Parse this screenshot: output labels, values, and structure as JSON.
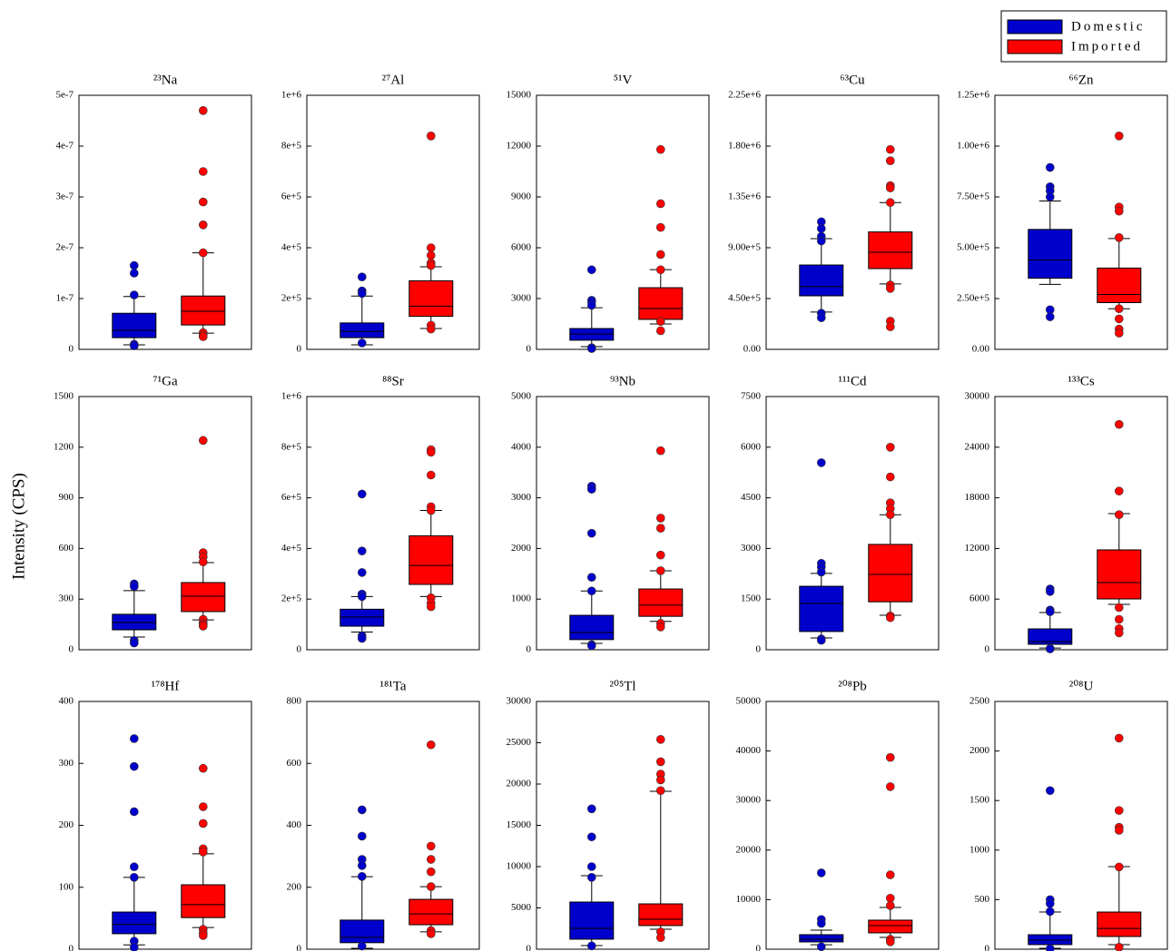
{
  "ylabel": "Intensity (CPS)",
  "chart_data": [
    {
      "type": "box",
      "title": "²³Na",
      "ylim": [
        0,
        5e-07
      ],
      "yticks": [
        0,
        {
          "value": 1e-07,
          "label": "1e-7"
        },
        {
          "value": 2e-07,
          "label": "2e-7"
        },
        {
          "value": 3e-07,
          "label": "3e-7"
        },
        {
          "value": 4e-07,
          "label": "4e-7"
        },
        {
          "value": 5e-07,
          "label": "5e-7"
        }
      ],
      "series": [
        {
          "name": "Domestic",
          "color": "#0000cc",
          "whislo": 9e-09,
          "q1": 2.3e-08,
          "med": 3.75e-08,
          "q3": 7.1e-08,
          "whishi": 1.04e-07,
          "fliers": [
            1.65e-07,
            1.5e-07,
            1.07e-07,
            1e-08,
            7e-09
          ]
        },
        {
          "name": "Imported",
          "color": "#ff0000",
          "whislo": 3.2e-08,
          "q1": 4.8e-08,
          "med": 7.5e-08,
          "q3": 1.05e-07,
          "whishi": 1.9e-07,
          "fliers": [
            4.7e-07,
            3.5e-07,
            2.9e-07,
            2.45e-07,
            1.9e-07,
            3.3e-08,
            2.8e-08,
            2.5e-08
          ]
        }
      ]
    },
    {
      "type": "box",
      "title": "²⁷Al",
      "ylim": [
        0,
        1000000
      ],
      "yticks": [
        0,
        {
          "value": 200000,
          "label": "2e+5"
        },
        {
          "value": 400000,
          "label": "4e+5"
        },
        {
          "value": 600000,
          "label": "6e+5"
        },
        {
          "value": 800000,
          "label": "8e+5"
        },
        {
          "value": 1000000,
          "label": "1e+6"
        }
      ],
      "series": [
        {
          "name": "Domestic",
          "color": "#0000cc",
          "whislo": 18000,
          "q1": 46000,
          "med": 71000,
          "q3": 104000,
          "whishi": 210000,
          "fliers": [
            285000,
            230000,
            220000,
            25000
          ]
        },
        {
          "name": "Imported",
          "color": "#ff0000",
          "whislo": 82000,
          "q1": 130000,
          "med": 170000,
          "q3": 270000,
          "whishi": 325000,
          "fliers": [
            840000,
            400000,
            370000,
            340000,
            330000,
            95000,
            80000
          ]
        }
      ]
    },
    {
      "type": "box",
      "title": "⁵¹V",
      "ylim": [
        0,
        15000
      ],
      "yticks": [
        0,
        3000,
        6000,
        9000,
        12000,
        15000
      ],
      "series": [
        {
          "name": "Domestic",
          "color": "#0000cc",
          "whislo": 160,
          "q1": 540,
          "med": 910,
          "q3": 1230,
          "whishi": 2460,
          "fliers": [
            4700,
            2900,
            2800,
            2600,
            100,
            50
          ]
        },
        {
          "name": "Imported",
          "color": "#ff0000",
          "whislo": 1500,
          "q1": 1770,
          "med": 2410,
          "q3": 3640,
          "whishi": 4710,
          "fliers": [
            11800,
            8600,
            7200,
            5600,
            4700,
            1650,
            1100
          ]
        }
      ]
    },
    {
      "type": "box",
      "title": "⁶³Cu",
      "ylim": [
        0,
        2250000
      ],
      "yticks": [
        {
          "value": 0,
          "label": "0.00"
        },
        {
          "value": 450000,
          "label": "4.50e+5"
        },
        {
          "value": 900000,
          "label": "9.00e+5"
        },
        {
          "value": 1350000,
          "label": "1.35e+6"
        },
        {
          "value": 1800000,
          "label": "1.80e+6"
        },
        {
          "value": 2250000,
          "label": "2.25e+6"
        }
      ],
      "series": [
        {
          "name": "Domestic",
          "color": "#0000cc",
          "whislo": 330000,
          "q1": 474000,
          "med": 555000,
          "q3": 747000,
          "whishi": 980000,
          "fliers": [
            1130000,
            1070000,
            1000000,
            960000,
            320000,
            280000
          ]
        },
        {
          "name": "Imported",
          "color": "#ff0000",
          "whislo": 580000,
          "q1": 715000,
          "med": 860000,
          "q3": 1040000,
          "whishi": 1300000,
          "fliers": [
            1770000,
            1670000,
            1450000,
            1430000,
            1300000,
            570000,
            540000,
            250000,
            200000
          ]
        }
      ]
    },
    {
      "type": "box",
      "title": "⁶⁶Zn",
      "ylim": [
        0,
        1250000
      ],
      "yticks": [
        {
          "value": 0,
          "label": "0.00"
        },
        {
          "value": 250000,
          "label": "2.50e+5"
        },
        {
          "value": 500000,
          "label": "5.00e+5"
        },
        {
          "value": 750000,
          "label": "7.50e+5"
        },
        {
          "value": 1000000,
          "label": "1.00e+6"
        },
        {
          "value": 1250000,
          "label": "1.25e+6"
        }
      ],
      "series": [
        {
          "name": "Domestic",
          "color": "#0000cc",
          "whislo": 320000,
          "q1": 350000,
          "med": 440000,
          "q3": 590000,
          "whishi": 730000,
          "fliers": [
            895000,
            800000,
            780000,
            750000,
            195000,
            160000
          ]
        },
        {
          "name": "Imported",
          "color": "#ff0000",
          "whislo": 200000,
          "q1": 230000,
          "med": 270000,
          "q3": 400000,
          "whishi": 545000,
          "fliers": [
            1050000,
            700000,
            680000,
            550000,
            200000,
            150000,
            100000,
            80000
          ]
        }
      ]
    },
    {
      "type": "box",
      "title": "⁷¹Ga",
      "ylim": [
        0,
        1500
      ],
      "yticks": [
        0,
        300,
        600,
        900,
        1200,
        1500
      ],
      "series": [
        {
          "name": "Domestic",
          "color": "#0000cc",
          "whislo": 75,
          "q1": 118,
          "med": 161,
          "q3": 210,
          "whishi": 350,
          "fliers": [
            390,
            375,
            55,
            40
          ]
        },
        {
          "name": "Imported",
          "color": "#ff0000",
          "whislo": 177,
          "q1": 226,
          "med": 317,
          "q3": 398,
          "whishi": 516,
          "fliers": [
            1240,
            575,
            550,
            520,
            180,
            160,
            150,
            140
          ]
        }
      ]
    },
    {
      "type": "box",
      "title": "⁸⁸Sr",
      "ylim": [
        0,
        1000000
      ],
      "yticks": [
        0,
        {
          "value": 200000,
          "label": "2e+5"
        },
        {
          "value": 400000,
          "label": "4e+5"
        },
        {
          "value": 600000,
          "label": "6e+5"
        },
        {
          "value": 800000,
          "label": "8e+5"
        },
        {
          "value": 1000000,
          "label": "1e+6"
        }
      ],
      "series": [
        {
          "name": "Domestic",
          "color": "#0000cc",
          "whislo": 70000,
          "q1": 93000,
          "med": 129000,
          "q3": 160000,
          "whishi": 210000,
          "fliers": [
            615000,
            390000,
            305000,
            220000,
            210000,
            55000,
            45000
          ]
        },
        {
          "name": "Imported",
          "color": "#ff0000",
          "whislo": 210000,
          "q1": 258000,
          "med": 333000,
          "q3": 450000,
          "whishi": 550000,
          "fliers": [
            790000,
            780000,
            690000,
            565000,
            550000,
            205000,
            185000,
            170000
          ]
        }
      ]
    },
    {
      "type": "box",
      "title": "⁹³Nb",
      "ylim": [
        0,
        5000
      ],
      "yticks": [
        0,
        1000,
        2000,
        3000,
        4000,
        5000
      ],
      "series": [
        {
          "name": "Domestic",
          "color": "#0000cc",
          "whislo": 125,
          "q1": 200,
          "med": 340,
          "q3": 680,
          "whishi": 1160,
          "fliers": [
            3230,
            3170,
            2300,
            1430,
            1160,
            100,
            80
          ]
        },
        {
          "name": "Imported",
          "color": "#ff0000",
          "whislo": 560,
          "q1": 660,
          "med": 880,
          "q3": 1200,
          "whishi": 1560,
          "fliers": [
            3930,
            2600,
            2400,
            1870,
            1560,
            520,
            450
          ]
        }
      ]
    },
    {
      "type": "box",
      "title": "¹¹¹Cd",
      "ylim": [
        0,
        7500
      ],
      "yticks": [
        0,
        1500,
        3000,
        4500,
        6000,
        7500
      ],
      "series": [
        {
          "name": "Domestic",
          "color": "#0000cc",
          "whislo": 350,
          "q1": 540,
          "med": 1370,
          "q3": 1880,
          "whishi": 2260,
          "fliers": [
            5540,
            2560,
            2450,
            2300,
            320,
            280
          ]
        },
        {
          "name": "Imported",
          "color": "#ff0000",
          "whislo": 1020,
          "q1": 1420,
          "med": 2230,
          "q3": 3120,
          "whishi": 4000,
          "fliers": [
            6000,
            5120,
            4350,
            4180,
            4000,
            1000,
            950
          ]
        }
      ]
    },
    {
      "type": "box",
      "title": "¹³³Cs",
      "ylim": [
        0,
        30000
      ],
      "yticks": [
        0,
        6000,
        12000,
        18000,
        24000,
        30000
      ],
      "series": [
        {
          "name": "Domestic",
          "color": "#0000cc",
          "whislo": 200,
          "q1": 640,
          "med": 970,
          "q3": 2470,
          "whishi": 4410,
          "fliers": [
            7200,
            6900,
            4700,
            4500,
            150,
            100
          ]
        },
        {
          "name": "Imported",
          "color": "#ff0000",
          "whislo": 5380,
          "q1": 6020,
          "med": 7960,
          "q3": 11830,
          "whishi": 16130,
          "fliers": [
            26700,
            18800,
            16000,
            5000,
            3600,
            2500,
            2000
          ]
        }
      ]
    },
    {
      "type": "box",
      "title": "¹⁷⁸Hf",
      "ylim": [
        0,
        400
      ],
      "yticks": [
        0,
        100,
        200,
        300,
        400
      ],
      "series": [
        {
          "name": "Domestic",
          "color": "#0000cc",
          "whislo": 7,
          "q1": 25,
          "med": 40,
          "q3": 60,
          "whishi": 116,
          "fliers": [
            340,
            295,
            222,
            133,
            116,
            13,
            3
          ]
        },
        {
          "name": "Imported",
          "color": "#ff0000",
          "whislo": 35,
          "q1": 51,
          "med": 72,
          "q3": 104,
          "whishi": 154,
          "fliers": [
            292,
            230,
            203,
            162,
            157,
            32,
            26,
            22
          ]
        }
      ]
    },
    {
      "type": "box",
      "title": "¹⁸¹Ta",
      "ylim": [
        0,
        800
      ],
      "yticks": [
        0,
        200,
        400,
        600,
        800
      ],
      "series": [
        {
          "name": "Domestic",
          "color": "#0000cc",
          "whislo": 3,
          "q1": 21,
          "med": 38,
          "q3": 94,
          "whishi": 234,
          "fliers": [
            450,
            365,
            290,
            270,
            235,
            10
          ]
        },
        {
          "name": "Imported",
          "color": "#ff0000",
          "whislo": 56,
          "q1": 79,
          "med": 114,
          "q3": 161,
          "whishi": 202,
          "fliers": [
            660,
            333,
            290,
            250,
            202,
            60,
            50
          ]
        }
      ]
    },
    {
      "type": "box",
      "title": "²⁰⁵Tl",
      "ylim": [
        0,
        30000
      ],
      "yticks": [
        0,
        5000,
        10000,
        15000,
        20000,
        25000,
        30000
      ],
      "series": [
        {
          "name": "Domestic",
          "color": "#0000cc",
          "whislo": 440,
          "q1": 1210,
          "med": 2530,
          "q3": 5710,
          "whishi": 8900,
          "fliers": [
            17000,
            13600,
            10000,
            8700,
            400
          ]
        },
        {
          "name": "Imported",
          "color": "#ff0000",
          "whislo": 2420,
          "q1": 2860,
          "med": 3630,
          "q3": 5490,
          "whishi": 19120,
          "fliers": [
            25400,
            22700,
            21200,
            20500,
            19200,
            2100,
            1400
          ]
        }
      ]
    },
    {
      "type": "box",
      "title": "²⁰⁸Pb",
      "ylim": [
        0,
        50000
      ],
      "yticks": [
        0,
        10000,
        20000,
        30000,
        40000,
        50000
      ],
      "series": [
        {
          "name": "Domestic",
          "color": "#0000cc",
          "whislo": 900,
          "q1": 1470,
          "med": 2010,
          "q3": 2930,
          "whishi": 3850,
          "fliers": [
            15400,
            6000,
            5200,
            500
          ]
        },
        {
          "name": "Imported",
          "color": "#ff0000",
          "whislo": 2380,
          "q1": 3300,
          "med": 4760,
          "q3": 5860,
          "whishi": 8420,
          "fliers": [
            38700,
            32800,
            15000,
            10300,
            8800,
            2000,
            1500
          ]
        }
      ]
    },
    {
      "type": "box",
      "title": "²⁰⁸U",
      "ylim": [
        0,
        2500
      ],
      "yticks": [
        0,
        500,
        1000,
        1500,
        2000,
        2500
      ],
      "series": [
        {
          "name": "Domestic",
          "color": "#0000cc",
          "whislo": 9,
          "q1": 46,
          "med": 92,
          "q3": 146,
          "whishi": 375,
          "fliers": [
            1600,
            500,
            460,
            380,
            5
          ]
        },
        {
          "name": "Imported",
          "color": "#ff0000",
          "whislo": 46,
          "q1": 128,
          "med": 210,
          "q3": 375,
          "whishi": 833,
          "fliers": [
            2130,
            1400,
            1230,
            1200,
            830,
            20
          ]
        }
      ]
    }
  ]
}
